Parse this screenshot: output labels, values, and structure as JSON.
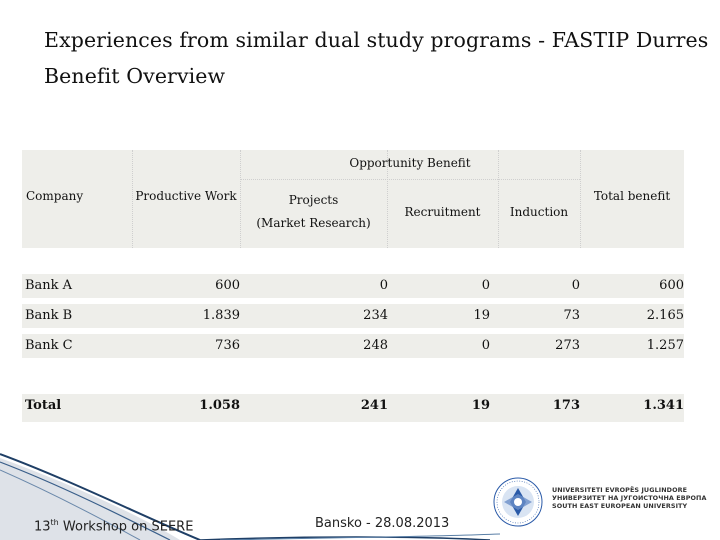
{
  "title": {
    "line1": "Experiences from similar dual study programs - FASTIP Durres",
    "line2": "Benefit Overview"
  },
  "table": {
    "group_header": "Opportunity Benefit",
    "columns": [
      "Company",
      "Productive Work",
      "Projects",
      "(Market Research)",
      "Recruitment",
      "Induction",
      "Total benefit"
    ],
    "rows": [
      {
        "company": "Bank A",
        "productive": "600",
        "projects": "0",
        "recruitment": "0",
        "induction": "0",
        "total": "600"
      },
      {
        "company": "Bank B",
        "productive": "1.839",
        "projects": "234",
        "recruitment": "19",
        "induction": "73",
        "total": "2.165"
      },
      {
        "company": "Bank C",
        "productive": "736",
        "projects": "248",
        "recruitment": "0",
        "induction": "273",
        "total": "1.257"
      }
    ],
    "total_row": {
      "company": "Total",
      "productive": "1.058",
      "projects": "241",
      "recruitment": "19",
      "induction": "173",
      "total": "1.341"
    }
  },
  "footer": {
    "workshop_prefix": "13",
    "workshop_sup": "th",
    "workshop_suffix": " Workshop on SEERE",
    "place_date": "Bansko - 28.08.2013",
    "university_lines": [
      "UNIVERSITETI EVROPËS JUGLINDORE",
      "УНИВЕРЗИТЕТ НА ЈУГОИСТОЧНА ЕВРОПА",
      "SOUTH EAST EUROPEAN UNIVERSITY"
    ]
  },
  "colors": {
    "table_bg": "#eeeeea",
    "footer_line": "#1f3f66",
    "logo_blue": "#2a5aa8"
  }
}
